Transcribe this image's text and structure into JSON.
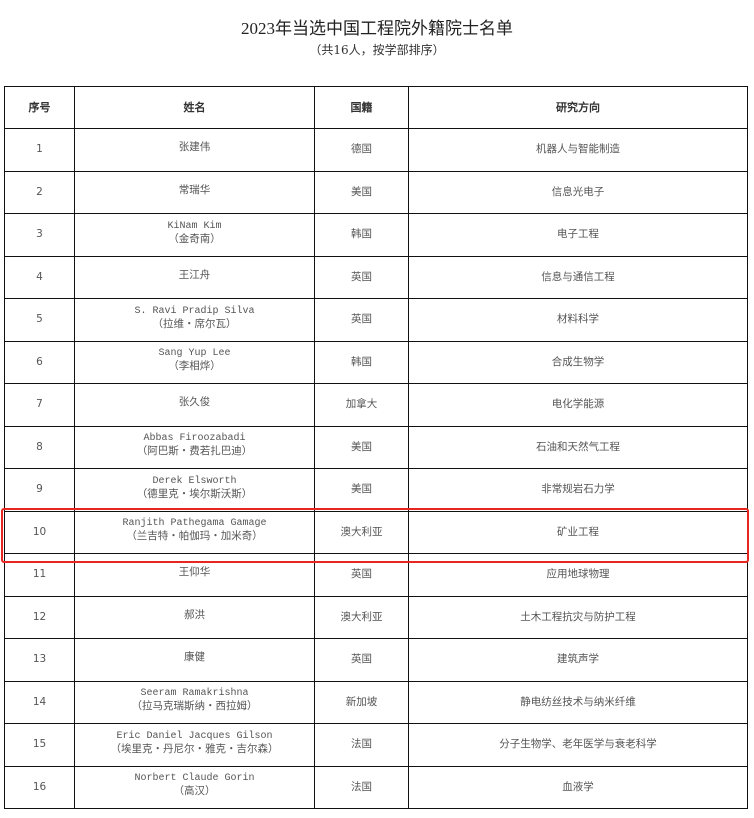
{
  "title": "2023年当选中国工程院外籍院士名单",
  "subtitle": "（共16人，按学部排序）",
  "highlight_color": "#e8261f",
  "highlighted_row": "10",
  "columns": [
    "序号",
    "姓名",
    "国籍",
    "研究方向"
  ],
  "rows": [
    {
      "no": "1",
      "name": "张建伟",
      "cn": "",
      "nationality": "德国",
      "field": "机器人与智能制造"
    },
    {
      "no": "2",
      "name": "常瑞华",
      "cn": "",
      "nationality": "美国",
      "field": "信息光电子"
    },
    {
      "no": "3",
      "name": "KiNam Kim",
      "cn": "（金奇南）",
      "nationality": "韩国",
      "field": "电子工程"
    },
    {
      "no": "4",
      "name": "王江舟",
      "cn": "",
      "nationality": "英国",
      "field": "信息与通信工程"
    },
    {
      "no": "5",
      "name": "S. Ravi Pradip Silva",
      "cn": "（拉维・席尔瓦）",
      "nationality": "英国",
      "field": "材料科学"
    },
    {
      "no": "6",
      "name": "Sang Yup Lee",
      "cn": "（李相烨）",
      "nationality": "韩国",
      "field": "合成生物学"
    },
    {
      "no": "7",
      "name": "张久俊",
      "cn": "",
      "nationality": "加拿大",
      "field": "电化学能源"
    },
    {
      "no": "8",
      "name": "Abbas Firoozabadi",
      "cn": "（阿巴斯・费若扎巴迪）",
      "nationality": "美国",
      "field": "石油和天然气工程"
    },
    {
      "no": "9",
      "name": "Derek Elsworth",
      "cn": "（德里克・埃尔斯沃斯）",
      "nationality": "美国",
      "field": "非常规岩石力学"
    },
    {
      "no": "10",
      "name": "Ranjith Pathegama Gamage",
      "cn": "（兰吉特・帕伽玛・加米奇）",
      "nationality": "澳大利亚",
      "field": "矿业工程"
    },
    {
      "no": "11",
      "name": "王仰华",
      "cn": "",
      "nationality": "英国",
      "field": "应用地球物理"
    },
    {
      "no": "12",
      "name": "郝洪",
      "cn": "",
      "nationality": "澳大利亚",
      "field": "土木工程抗灾与防护工程"
    },
    {
      "no": "13",
      "name": "康健",
      "cn": "",
      "nationality": "英国",
      "field": "建筑声学"
    },
    {
      "no": "14",
      "name": "Seeram Ramakrishna",
      "cn": "（拉马克瑞斯纳・西拉姆）",
      "nationality": "新加坡",
      "field": "静电纺丝技术与纳米纤维"
    },
    {
      "no": "15",
      "name": "Eric Daniel Jacques Gilson",
      "cn": "（埃里克・丹尼尔・雅克・吉尔森）",
      "nationality": "法国",
      "field": "分子生物学、老年医学与衰老科学"
    },
    {
      "no": "16",
      "name": "Norbert Claude Gorin",
      "cn": "（高汉）",
      "nationality": "法国",
      "field": "血液学"
    }
  ]
}
